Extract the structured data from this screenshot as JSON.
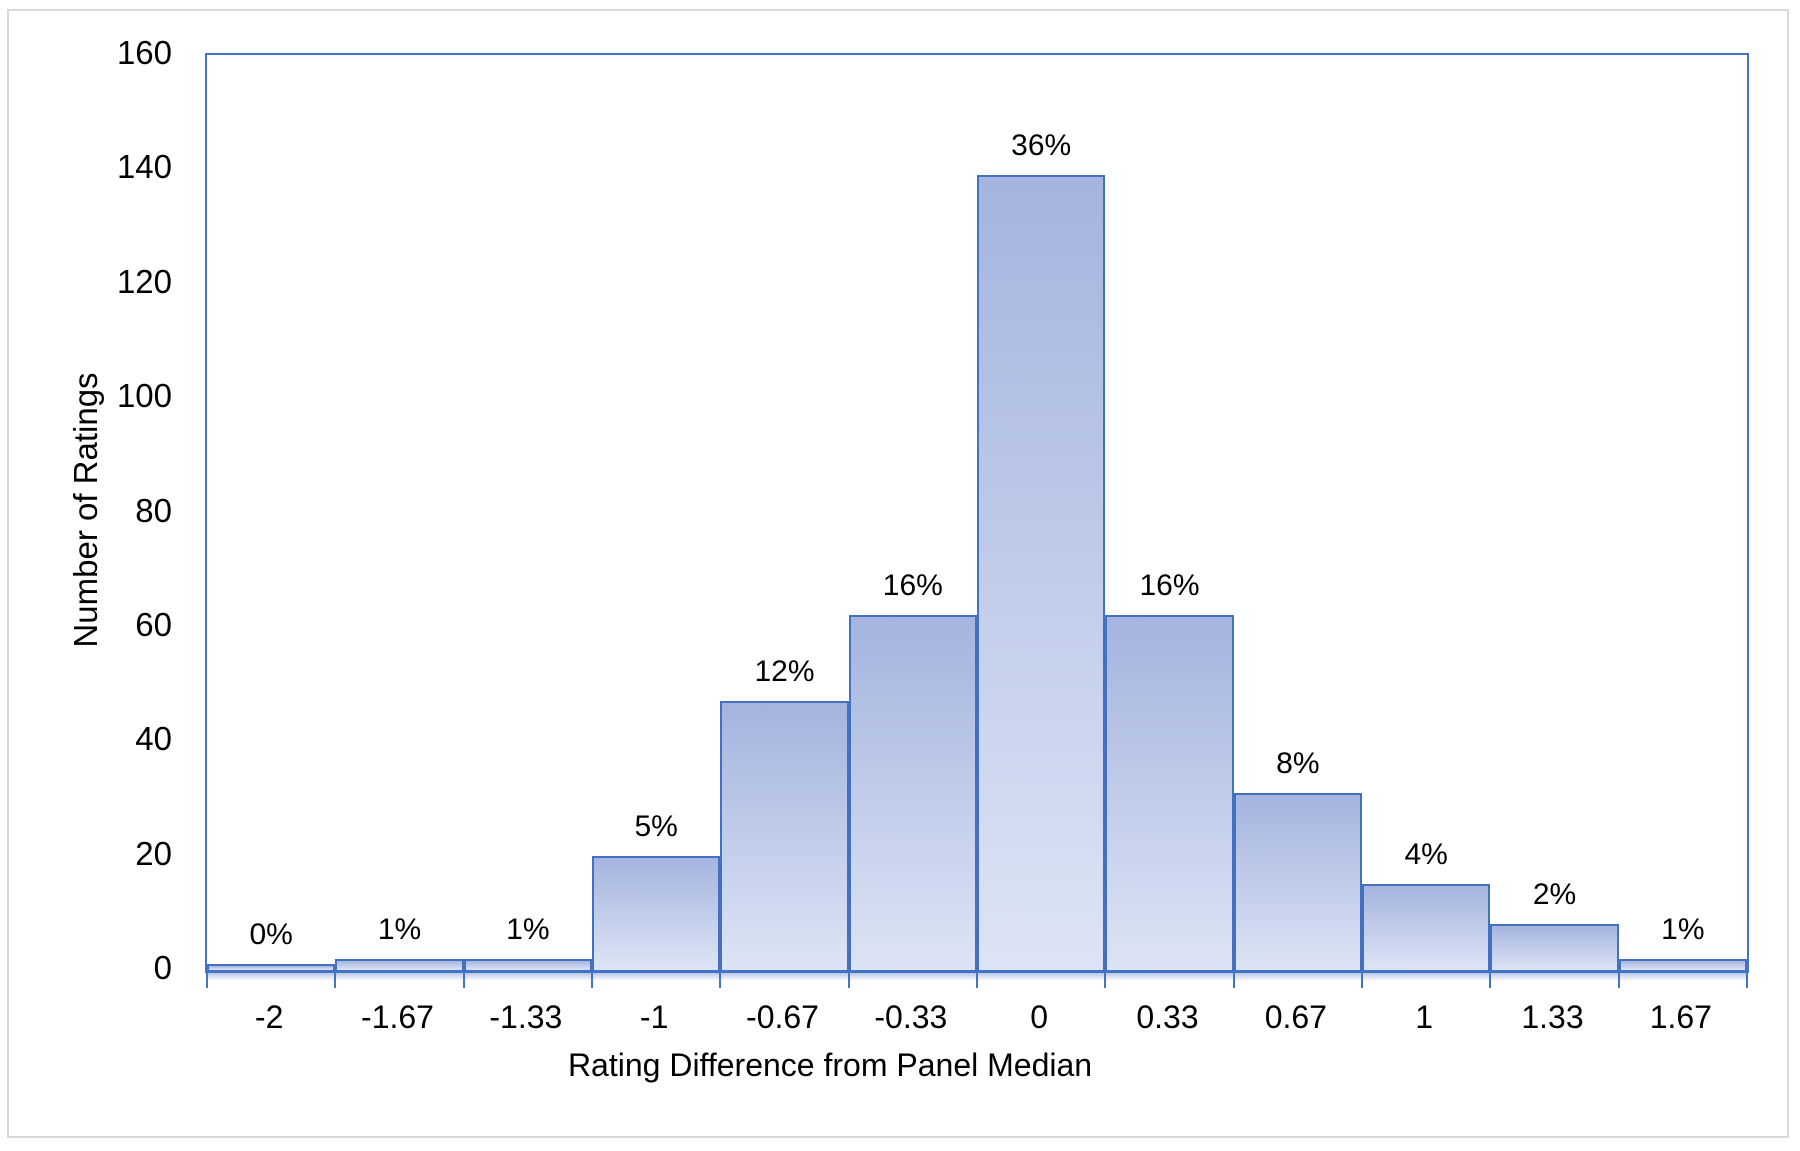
{
  "figure": {
    "background": "#ffffff",
    "frame_border_color": "#d9d9d9"
  },
  "chart_data": {
    "type": "bar",
    "title": "",
    "xlabel": "Rating Difference from Panel Median",
    "ylabel": "Number of Ratings",
    "categories": [
      "-2",
      "-1.67",
      "-1.33",
      "-1",
      "-0.67",
      "-0.33",
      "0",
      "0.33",
      "0.67",
      "1",
      "1.33",
      "1.67"
    ],
    "values": [
      1,
      2,
      2,
      20,
      47,
      62,
      139,
      62,
      31,
      15,
      8,
      2
    ],
    "bar_labels": [
      "0%",
      "1%",
      "1%",
      "5%",
      "12%",
      "16%",
      "36%",
      "16%",
      "8%",
      "4%",
      "2%",
      "1%"
    ],
    "ylim": [
      0,
      160
    ],
    "y_ticks": [
      0,
      20,
      40,
      60,
      80,
      100,
      120,
      140,
      160
    ],
    "grid": false,
    "legend": false,
    "layout": {
      "bars_adjacent": true,
      "value_label_position": "above-bar",
      "x_ticks_at_category_boundaries": true
    },
    "colors": {
      "bar_fill_top": "#a4b4df",
      "bar_fill_bottom": "#dde4f5",
      "bar_border": "#4470c0",
      "axis_line": "#4472c4",
      "axis_fade": "rgba(160,180,225,0.75)",
      "text": "#000000"
    }
  }
}
